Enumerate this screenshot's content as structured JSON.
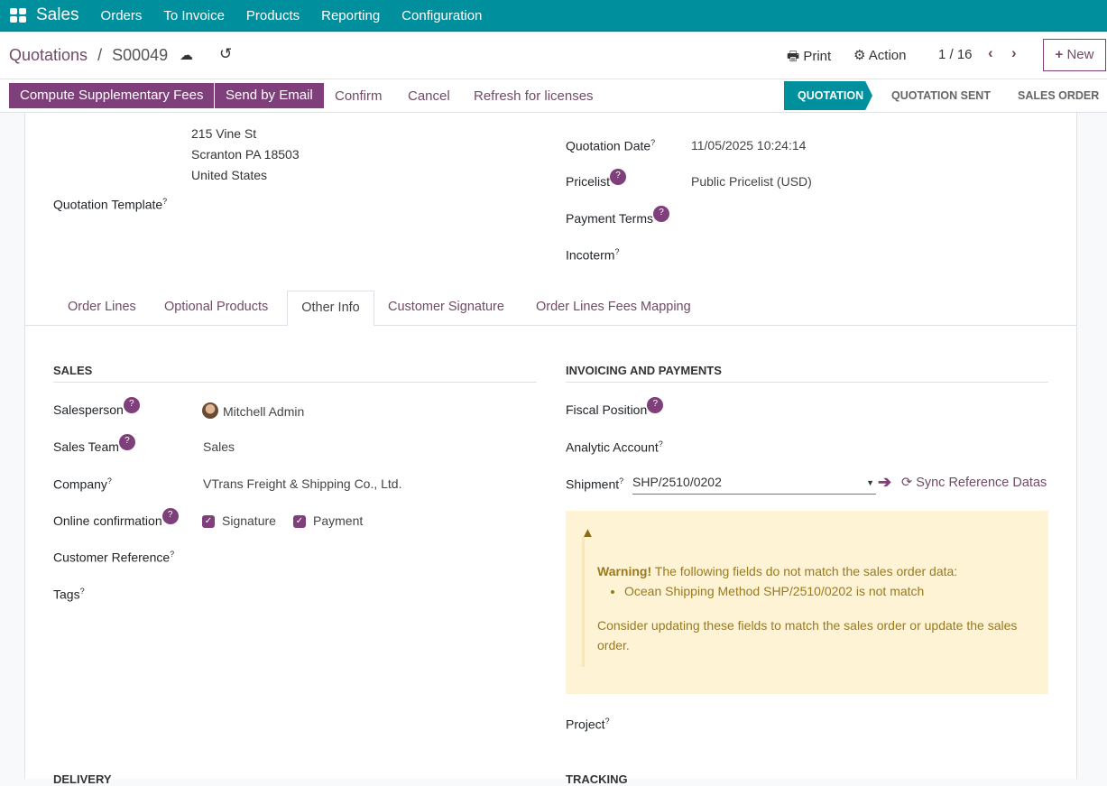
{
  "colors": {
    "topbar": "#008f9c",
    "primary": "#7f3f7a",
    "link": "#714b67",
    "warning_bg": "#fff3d6",
    "warning_text": "#9a7a1a"
  },
  "nav": {
    "app": "Sales",
    "menus": [
      "Orders",
      "To Invoice",
      "Products",
      "Reporting",
      "Configuration"
    ]
  },
  "breadcrumb": {
    "parent": "Quotations",
    "sep": "/",
    "current": "S00049"
  },
  "toolbar": {
    "print": "Print",
    "action": "Action",
    "pager": "1 / 16",
    "new": "New"
  },
  "buttons": {
    "compute": "Compute Supplementary Fees",
    "send": "Send by Email",
    "confirm": "Confirm",
    "cancel": "Cancel",
    "refresh": "Refresh for licenses"
  },
  "status": [
    "QUOTATION",
    "QUOTATION SENT",
    "SALES ORDER"
  ],
  "status_active": "QUOTATION",
  "address": [
    "215 Vine St",
    "Scranton PA 18503",
    "United States"
  ],
  "header_left": {
    "quotation_template": "Quotation Template"
  },
  "header_right": {
    "quotation_date_label": "Quotation Date",
    "quotation_date": "11/05/2025 10:24:14",
    "pricelist_label": "Pricelist",
    "pricelist": "Public Pricelist (USD)",
    "payment_terms_label": "Payment Terms",
    "incoterm_label": "Incoterm"
  },
  "tabs": [
    "Order Lines",
    "Optional Products",
    "Other Info",
    "Customer Signature",
    "Order Lines Fees Mapping"
  ],
  "active_tab": "Other Info",
  "sales": {
    "title": "SALES",
    "salesperson_label": "Salesperson",
    "salesperson": "Mitchell Admin",
    "team_label": "Sales Team",
    "team": "Sales",
    "company_label": "Company",
    "company": "VTrans Freight & Shipping Co., Ltd.",
    "online_label": "Online confirmation",
    "signature": "Signature",
    "payment": "Payment",
    "customer_ref_label": "Customer Reference",
    "tags_label": "Tags"
  },
  "invoicing": {
    "title": "INVOICING AND PAYMENTS",
    "fiscal_label": "Fiscal Position",
    "analytic_label": "Analytic Account",
    "shipment_label": "Shipment",
    "shipment": "SHP/2510/0202",
    "sync": "Sync Reference Datas",
    "project_label": "Project"
  },
  "warning": {
    "strong": "Warning!",
    "text": " The following fields do not match the sales order data:",
    "items": [
      "Ocean Shipping Method SHP/2510/0202 is not match"
    ],
    "footer": "Consider updating these fields to match the sales order or update the sales order."
  },
  "bottom": {
    "delivery": "DELIVERY",
    "tracking": "TRACKING"
  }
}
